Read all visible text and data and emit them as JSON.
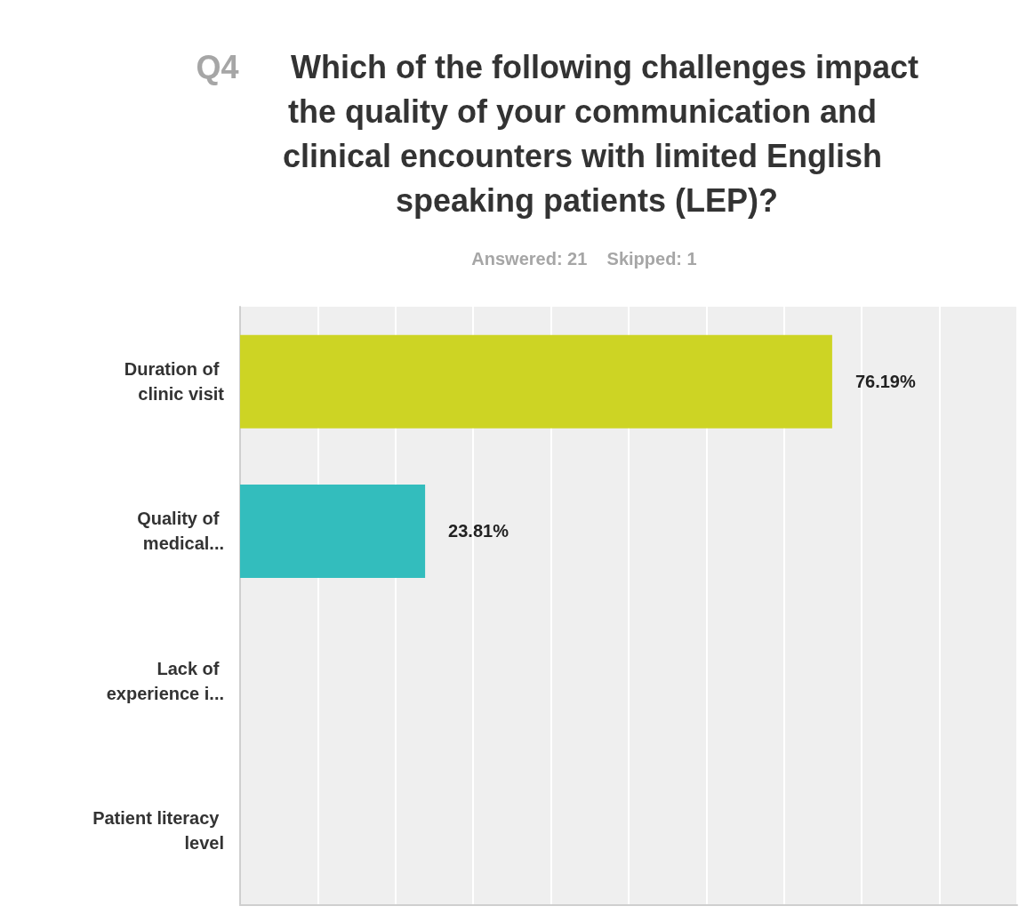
{
  "chart_data": {
    "type": "bar",
    "orientation": "horizontal",
    "title": "Q4 Which of the following challenges impact the quality of your communication and clinical encounters with limited English speaking patients (LEP)?",
    "subtitle": "Answered: 21    Skipped: 1",
    "categories": [
      "Duration of clinic visit",
      "Quality of medical...",
      "Lack of experience i...",
      "Patient literacy level"
    ],
    "values": [
      76.19,
      23.81,
      null,
      null
    ],
    "colors": [
      "#cdd424",
      "#33bdbd",
      "#cdd424",
      "#33bdbd"
    ],
    "value_labels": [
      "76.19%",
      "23.81%",
      null,
      null
    ],
    "xlim": [
      0,
      100
    ],
    "xticks": [
      {
        "value": 0,
        "label": null
      },
      {
        "value": 10,
        "label": null
      },
      {
        "value": 20,
        "label": null
      },
      {
        "value": 30,
        "label": null
      },
      {
        "value": 40,
        "label": null
      },
      {
        "value": 50,
        "label": null
      },
      {
        "value": 60,
        "label": null
      },
      {
        "value": 70,
        "label": null
      },
      {
        "value": 80,
        "label": null
      },
      {
        "value": 90,
        "label": null
      },
      {
        "value": 100,
        "label": null
      }
    ],
    "tick_labels": "y",
    "grid": "x",
    "legend": false
  }
}
